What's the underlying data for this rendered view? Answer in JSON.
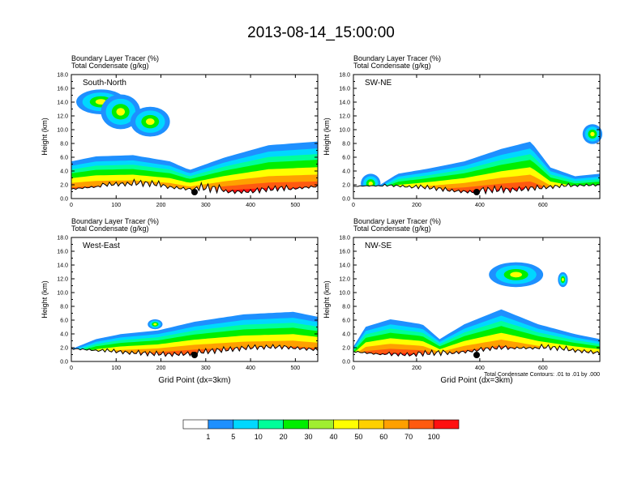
{
  "title": "2013-08-14_15:00:00",
  "chart_data": {
    "type": "heatmap",
    "panels": [
      {
        "name": "South-North",
        "subtitle_line1": "Boundary Layer Tracer   (%)",
        "subtitle_line2": "Total Condensate   (g/kg)",
        "xmax": 550,
        "xticks": [
          0,
          100,
          200,
          300,
          400,
          500
        ],
        "xlabel": "",
        "ylabel": "Height (km)",
        "ylim": [
          0,
          18
        ],
        "yticks": [
          "0.0",
          "2.0",
          "4.0",
          "6.0",
          "8.0",
          "10.0",
          "12.0",
          "14.0",
          "16.0",
          "18.0"
        ],
        "marker_x": 275,
        "footnote": ""
      },
      {
        "name": "SW-NE",
        "subtitle_line1": "Boundary Layer Tracer   (%)",
        "subtitle_line2": "Total Condensate   (g/kg)",
        "xmax": 780,
        "xticks": [
          0,
          200,
          400,
          600
        ],
        "xlabel": "",
        "ylabel": "Height (km)",
        "ylim": [
          0,
          18
        ],
        "yticks": [
          "0.0",
          "2.0",
          "4.0",
          "6.0",
          "8.0",
          "10.0",
          "12.0",
          "14.0",
          "16.0",
          "18.0"
        ],
        "marker_x": 390,
        "footnote": ""
      },
      {
        "name": "West-East",
        "subtitle_line1": "Boundary Layer Tracer   (%)",
        "subtitle_line2": "Total Condensate   (g/kg)",
        "xmax": 550,
        "xticks": [
          0,
          100,
          200,
          300,
          400,
          500
        ],
        "xlabel": "Grid Point (dx=3km)",
        "ylabel": "Height (km)",
        "ylim": [
          0,
          18
        ],
        "yticks": [
          "0.0",
          "2.0",
          "4.0",
          "6.0",
          "8.0",
          "10.0",
          "12.0",
          "14.0",
          "16.0",
          "18.0"
        ],
        "marker_x": 275,
        "footnote": ""
      },
      {
        "name": "NW-SE",
        "subtitle_line1": "Boundary Layer Tracer   (%)",
        "subtitle_line2": "Total Condensate   (g/kg)",
        "xmax": 780,
        "xticks": [
          0,
          200,
          400,
          600
        ],
        "xlabel": "Grid Point (dx=3km)",
        "ylabel": "Height (km)",
        "ylim": [
          0,
          18
        ],
        "yticks": [
          "0.0",
          "2.0",
          "4.0",
          "6.0",
          "8.0",
          "10.0",
          "12.0",
          "14.0",
          "16.0",
          "18.0"
        ],
        "marker_x": 390,
        "footnote": "Total Condensate Contours: .01 to .01 by .000"
      }
    ],
    "colorbar": {
      "levels": [
        "1",
        "5",
        "10",
        "20",
        "30",
        "40",
        "50",
        "60",
        "70",
        "100"
      ],
      "colors": [
        "#ffffff",
        "#1e90ff",
        "#00d8ff",
        "#00ff9a",
        "#00ee00",
        "#a0ee30",
        "#ffff00",
        "#ffd000",
        "#ffa000",
        "#ff5a10",
        "#ff1010"
      ]
    }
  }
}
